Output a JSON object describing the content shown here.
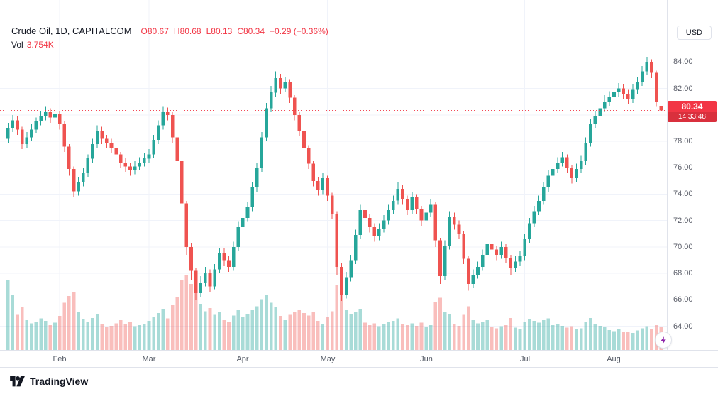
{
  "header": {
    "symbol_title": "Crude Oil, 1D, CAPITALCOM",
    "ohlc": {
      "open_label": "O",
      "open": "80.67",
      "high_label": "H",
      "high": "80.68",
      "low_label": "L",
      "low": "80.13",
      "close_label": "C",
      "close": "80.34",
      "change": "−0.29 (−0.36%)"
    },
    "volume_label": "Vol",
    "volume_value": "3.754K"
  },
  "axis": {
    "currency_button": "USD",
    "price_labels": [
      "84.00",
      "82.00",
      "80.00",
      "78.00",
      "76.00",
      "74.00",
      "72.00",
      "70.00",
      "68.00",
      "66.00",
      "64.00"
    ],
    "months": [
      {
        "label": "Feb",
        "index": 11
      },
      {
        "label": "Mar",
        "index": 30
      },
      {
        "label": "Apr",
        "index": 50
      },
      {
        "label": "May",
        "index": 68
      },
      {
        "label": "Jun",
        "index": 89
      },
      {
        "label": "Jul",
        "index": 110
      },
      {
        "label": "Aug",
        "index": 129
      }
    ],
    "price_tag": {
      "price": "80.34",
      "countdown": "14:33:48"
    }
  },
  "attribution": {
    "brand": "TradingView"
  },
  "colors": {
    "up": "#26a69a",
    "down": "#ef5350",
    "accent_red": "#f23645",
    "vol_up": "rgba(38,166,154,0.40)",
    "vol_down": "rgba(239,83,80,0.38)",
    "grid": "#f0f3fa",
    "axis_text": "#5d606b",
    "text": "#131722"
  },
  "chart_data": {
    "type": "candlestick",
    "title": "Crude Oil, 1D, CAPITALCOM",
    "symbol": "Crude Oil",
    "interval": "1D",
    "exchange": "CAPITALCOM",
    "currency": "USD",
    "price_line": 80.34,
    "last": {
      "open": 80.67,
      "high": 80.68,
      "low": 80.13,
      "close": 80.34,
      "change": -0.29,
      "change_pct": -0.36,
      "volume": "3.754K",
      "countdown": "14:33:48"
    },
    "y_range": [
      62.2,
      88.7
    ],
    "price_grid": [
      64,
      66,
      68,
      70,
      72,
      74,
      76,
      78,
      80,
      82,
      84
    ],
    "volume_unit": "K",
    "candles": [
      [
        78.2,
        79.4,
        77.9,
        79.0,
        11.5
      ],
      [
        79.0,
        80.0,
        78.7,
        79.6,
        9.0
      ],
      [
        79.6,
        79.9,
        78.5,
        78.9,
        5.8
      ],
      [
        78.9,
        79.1,
        77.4,
        77.8,
        7.1
      ],
      [
        77.8,
        78.7,
        77.5,
        78.3,
        4.9
      ],
      [
        78.3,
        79.3,
        78.0,
        78.9,
        4.4
      ],
      [
        78.9,
        79.8,
        78.6,
        79.5,
        4.6
      ],
      [
        79.5,
        80.3,
        79.2,
        79.9,
        5.2
      ],
      [
        79.9,
        80.6,
        79.6,
        80.2,
        4.8
      ],
      [
        80.2,
        80.5,
        79.4,
        79.8,
        4.1
      ],
      [
        79.8,
        80.45,
        79.5,
        80.1,
        4.5
      ],
      [
        80.1,
        80.3,
        78.9,
        79.3,
        5.6
      ],
      [
        79.3,
        79.5,
        77.2,
        77.6,
        7.8
      ],
      [
        77.6,
        77.8,
        75.4,
        75.9,
        8.9
      ],
      [
        75.9,
        76.1,
        73.8,
        74.2,
        9.6
      ],
      [
        74.2,
        75.3,
        73.9,
        74.9,
        6.2
      ],
      [
        74.9,
        76.0,
        74.6,
        75.6,
        5.1
      ],
      [
        75.6,
        77.0,
        75.3,
        76.7,
        4.7
      ],
      [
        76.7,
        78.2,
        76.4,
        77.8,
        5.3
      ],
      [
        77.8,
        79.2,
        77.5,
        78.8,
        5.9
      ],
      [
        78.8,
        79.1,
        77.8,
        78.2,
        4.2
      ],
      [
        78.2,
        78.5,
        77.5,
        77.9,
        3.8
      ],
      [
        77.9,
        78.2,
        77.1,
        77.5,
        4.0
      ],
      [
        77.5,
        77.8,
        76.6,
        77.0,
        4.4
      ],
      [
        77.0,
        77.2,
        76.0,
        76.4,
        4.9
      ],
      [
        76.4,
        76.7,
        75.7,
        76.1,
        4.3
      ],
      [
        76.1,
        76.4,
        75.4,
        75.8,
        4.6
      ],
      [
        75.8,
        76.5,
        75.5,
        76.1,
        3.9
      ],
      [
        76.1,
        76.8,
        75.8,
        76.4,
        4.1
      ],
      [
        76.4,
        77.1,
        76.1,
        76.7,
        4.3
      ],
      [
        76.7,
        77.4,
        76.4,
        77.0,
        4.8
      ],
      [
        77.0,
        78.5,
        76.7,
        78.1,
        5.5
      ],
      [
        78.1,
        79.6,
        77.8,
        79.2,
        6.1
      ],
      [
        79.2,
        80.6,
        78.9,
        80.2,
        6.8
      ],
      [
        80.2,
        80.55,
        79.6,
        80.0,
        5.2
      ],
      [
        80.0,
        80.2,
        77.9,
        78.3,
        7.4
      ],
      [
        78.3,
        78.5,
        76.0,
        76.5,
        8.8
      ],
      [
        76.5,
        76.7,
        72.8,
        73.3,
        11.5
      ],
      [
        73.3,
        73.5,
        69.4,
        70.0,
        12.3
      ],
      [
        70.0,
        70.3,
        67.5,
        68.2,
        10.9
      ],
      [
        68.2,
        68.4,
        66.0,
        66.5,
        10.1
      ],
      [
        66.5,
        67.8,
        66.2,
        67.3,
        7.6
      ],
      [
        67.3,
        68.5,
        67.0,
        68.0,
        6.4
      ],
      [
        68.0,
        68.3,
        66.6,
        67.0,
        6.9
      ],
      [
        67.0,
        68.7,
        66.8,
        68.3,
        5.8
      ],
      [
        68.3,
        69.9,
        68.0,
        69.5,
        6.3
      ],
      [
        69.5,
        69.9,
        68.6,
        69.0,
        4.9
      ],
      [
        69.0,
        69.3,
        68.1,
        68.5,
        4.6
      ],
      [
        68.5,
        70.4,
        68.2,
        70.0,
        5.7
      ],
      [
        70.0,
        71.9,
        69.7,
        71.5,
        6.6
      ],
      [
        71.5,
        72.7,
        71.2,
        72.2,
        5.4
      ],
      [
        72.2,
        73.4,
        71.9,
        73.0,
        5.9
      ],
      [
        73.0,
        74.9,
        72.7,
        74.5,
        6.7
      ],
      [
        74.5,
        76.4,
        74.2,
        76.0,
        7.2
      ],
      [
        76.0,
        78.7,
        75.7,
        78.3,
        8.4
      ],
      [
        78.3,
        80.9,
        78.0,
        80.5,
        9.1
      ],
      [
        80.5,
        82.2,
        80.2,
        81.7,
        7.8
      ],
      [
        81.7,
        83.3,
        81.4,
        82.8,
        7.1
      ],
      [
        82.8,
        83.1,
        81.6,
        82.0,
        5.6
      ],
      [
        82.0,
        82.9,
        81.7,
        82.5,
        4.9
      ],
      [
        82.5,
        82.7,
        80.9,
        81.3,
        5.8
      ],
      [
        81.3,
        81.5,
        79.6,
        80.0,
        6.2
      ],
      [
        80.0,
        80.2,
        78.4,
        78.8,
        6.6
      ],
      [
        78.8,
        79.0,
        77.1,
        77.5,
        6.1
      ],
      [
        77.5,
        77.7,
        75.9,
        76.3,
        5.7
      ],
      [
        76.3,
        76.5,
        74.6,
        75.0,
        6.3
      ],
      [
        75.0,
        75.3,
        73.9,
        74.3,
        4.8
      ],
      [
        74.3,
        75.6,
        74.0,
        75.2,
        4.2
      ],
      [
        75.2,
        75.4,
        73.5,
        73.9,
        5.5
      ],
      [
        73.9,
        74.1,
        72.1,
        72.5,
        6.4
      ],
      [
        72.5,
        72.7,
        67.9,
        68.5,
        10.8
      ],
      [
        68.5,
        68.8,
        65.9,
        66.4,
        9.7
      ],
      [
        66.4,
        68.1,
        66.1,
        67.7,
        6.6
      ],
      [
        67.7,
        69.4,
        67.4,
        69.0,
        5.9
      ],
      [
        69.0,
        71.3,
        68.7,
        70.9,
        6.2
      ],
      [
        70.9,
        73.2,
        70.6,
        72.8,
        6.8
      ],
      [
        72.8,
        73.1,
        71.8,
        72.2,
        4.5
      ],
      [
        72.2,
        72.5,
        71.1,
        71.5,
        4.1
      ],
      [
        71.5,
        71.8,
        70.4,
        70.8,
        4.4
      ],
      [
        70.8,
        71.8,
        70.5,
        71.4,
        3.9
      ],
      [
        71.4,
        72.4,
        71.1,
        72.0,
        4.2
      ],
      [
        72.0,
        73.2,
        71.7,
        72.8,
        4.6
      ],
      [
        72.8,
        73.9,
        72.5,
        73.5,
        4.8
      ],
      [
        73.5,
        74.9,
        73.2,
        74.4,
        5.2
      ],
      [
        74.4,
        74.7,
        73.2,
        73.6,
        4.3
      ],
      [
        73.6,
        73.9,
        72.4,
        72.8,
        4.1
      ],
      [
        72.8,
        74.2,
        72.5,
        73.8,
        4.4
      ],
      [
        73.8,
        74.0,
        72.5,
        72.9,
        4.0
      ],
      [
        72.9,
        73.1,
        71.6,
        72.0,
        4.5
      ],
      [
        72.0,
        73.0,
        71.7,
        72.6,
        3.8
      ],
      [
        72.6,
        73.6,
        72.3,
        73.2,
        4.1
      ],
      [
        73.2,
        73.4,
        70.0,
        70.5,
        7.9
      ],
      [
        70.5,
        70.7,
        67.2,
        67.8,
        8.6
      ],
      [
        67.8,
        70.5,
        67.5,
        70.1,
        6.3
      ],
      [
        70.1,
        72.7,
        69.8,
        72.3,
        6.0
      ],
      [
        72.3,
        72.6,
        71.3,
        71.7,
        4.2
      ],
      [
        71.7,
        72.0,
        70.6,
        71.0,
        4.0
      ],
      [
        71.0,
        71.2,
        68.7,
        69.1,
        5.8
      ],
      [
        69.1,
        69.3,
        66.7,
        67.2,
        7.2
      ],
      [
        67.2,
        68.3,
        66.9,
        67.9,
        4.9
      ],
      [
        67.9,
        68.9,
        67.6,
        68.5,
        4.4
      ],
      [
        68.5,
        69.8,
        68.2,
        69.4,
        4.7
      ],
      [
        69.4,
        70.6,
        69.1,
        70.2,
        4.9
      ],
      [
        70.2,
        70.5,
        69.4,
        69.8,
        3.8
      ],
      [
        69.8,
        70.1,
        69.0,
        69.4,
        3.6
      ],
      [
        69.4,
        70.4,
        69.1,
        70.0,
        3.9
      ],
      [
        70.0,
        70.2,
        68.8,
        69.2,
        4.1
      ],
      [
        69.2,
        69.4,
        67.9,
        68.4,
        5.3
      ],
      [
        68.4,
        69.3,
        68.1,
        68.9,
        3.7
      ],
      [
        68.9,
        69.7,
        68.6,
        69.3,
        3.5
      ],
      [
        69.3,
        71.0,
        69.0,
        70.6,
        4.6
      ],
      [
        70.6,
        72.2,
        70.3,
        71.8,
        5.1
      ],
      [
        71.8,
        73.1,
        71.5,
        72.7,
        4.8
      ],
      [
        72.7,
        73.9,
        72.4,
        73.5,
        4.5
      ],
      [
        73.5,
        74.9,
        73.2,
        74.5,
        4.9
      ],
      [
        74.5,
        75.8,
        74.2,
        75.4,
        5.2
      ],
      [
        75.4,
        76.3,
        75.1,
        75.9,
        4.1
      ],
      [
        75.9,
        76.8,
        75.6,
        76.4,
        4.3
      ],
      [
        76.4,
        77.2,
        76.1,
        76.8,
        4.0
      ],
      [
        76.8,
        77.0,
        75.6,
        76.0,
        3.7
      ],
      [
        76.0,
        76.2,
        74.8,
        75.2,
        3.9
      ],
      [
        75.2,
        76.3,
        74.9,
        75.9,
        3.4
      ],
      [
        75.9,
        76.9,
        75.6,
        76.5,
        3.6
      ],
      [
        76.5,
        78.3,
        76.2,
        77.9,
        4.7
      ],
      [
        77.9,
        79.7,
        77.6,
        79.3,
        5.3
      ],
      [
        79.3,
        80.3,
        79.0,
        79.9,
        4.2
      ],
      [
        79.9,
        80.9,
        79.6,
        80.5,
        4.0
      ],
      [
        80.5,
        81.5,
        80.2,
        81.0,
        3.8
      ],
      [
        81.0,
        81.8,
        80.7,
        81.4,
        3.3
      ],
      [
        81.4,
        82.1,
        81.1,
        81.7,
        3.1
      ],
      [
        81.7,
        82.4,
        81.4,
        82.0,
        3.5
      ],
      [
        82.0,
        82.3,
        81.2,
        81.6,
        2.9
      ],
      [
        81.6,
        81.9,
        80.8,
        81.2,
        3.0
      ],
      [
        81.2,
        82.3,
        80.9,
        81.9,
        2.8
      ],
      [
        81.9,
        82.9,
        81.6,
        82.5,
        3.2
      ],
      [
        82.5,
        83.7,
        82.2,
        83.3,
        3.6
      ],
      [
        83.3,
        84.4,
        83.0,
        84.0,
        3.9
      ],
      [
        84.0,
        84.2,
        82.8,
        83.2,
        3.4
      ],
      [
        83.2,
        83.35,
        80.6,
        81.0,
        4.1
      ],
      [
        80.67,
        80.68,
        80.13,
        80.34,
        3.754
      ]
    ]
  }
}
